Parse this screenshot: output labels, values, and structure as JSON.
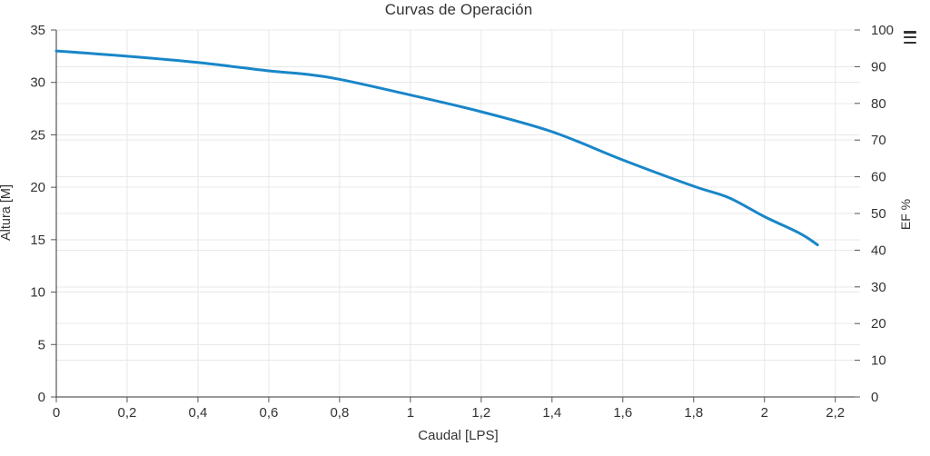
{
  "title": "Curvas de Operación",
  "toolbar": {
    "menu_icon": "hamburger-menu-icon"
  },
  "colors": {
    "series": "#1986c8",
    "text": "#333333",
    "axis_line": "#333333",
    "tick": "#555555",
    "grid": "#e8e8e8"
  },
  "chart_data": {
    "type": "line",
    "title": "Curvas de Operación",
    "xlabel": "Caudal [LPS]",
    "ylabel_left": "Altura [M]",
    "ylabel_right": "EF %",
    "xlim": [
      0,
      2.27
    ],
    "ylim_left": [
      0,
      35
    ],
    "ylim_right": [
      0,
      100
    ],
    "grid": "both-y-axes-and-x",
    "legend": "none",
    "xticks": {
      "values": [
        0,
        0.2,
        0.4,
        0.6,
        0.8,
        1,
        1.2,
        1.4,
        1.6,
        1.8,
        2,
        2.2
      ],
      "labels": [
        "0",
        "0,2",
        "0,4",
        "0,6",
        "0,8",
        "1",
        "1,2",
        "1,4",
        "1,6",
        "1,8",
        "2",
        "2,2"
      ]
    },
    "yticks_left": {
      "values": [
        0,
        5,
        10,
        15,
        20,
        25,
        30,
        35
      ],
      "labels": [
        "0",
        "5",
        "10",
        "15",
        "20",
        "25",
        "30",
        "35"
      ]
    },
    "yticks_right": {
      "values": [
        0,
        10,
        20,
        30,
        40,
        50,
        60,
        70,
        80,
        90,
        100
      ],
      "labels": [
        "0",
        "10",
        "20",
        "30",
        "40",
        "50",
        "60",
        "70",
        "80",
        "90",
        "100"
      ]
    },
    "series": [
      {
        "name": "Altura",
        "axis": "left",
        "color": "#1986c8",
        "x": [
          0,
          0.2,
          0.4,
          0.6,
          0.7,
          0.8,
          1.0,
          1.2,
          1.4,
          1.6,
          1.8,
          1.9,
          2.0,
          2.1,
          2.15
        ],
        "y": [
          33.0,
          32.5,
          31.9,
          31.1,
          30.8,
          30.3,
          28.8,
          27.2,
          25.3,
          22.6,
          20.1,
          19.0,
          17.2,
          15.6,
          14.5
        ]
      }
    ]
  }
}
